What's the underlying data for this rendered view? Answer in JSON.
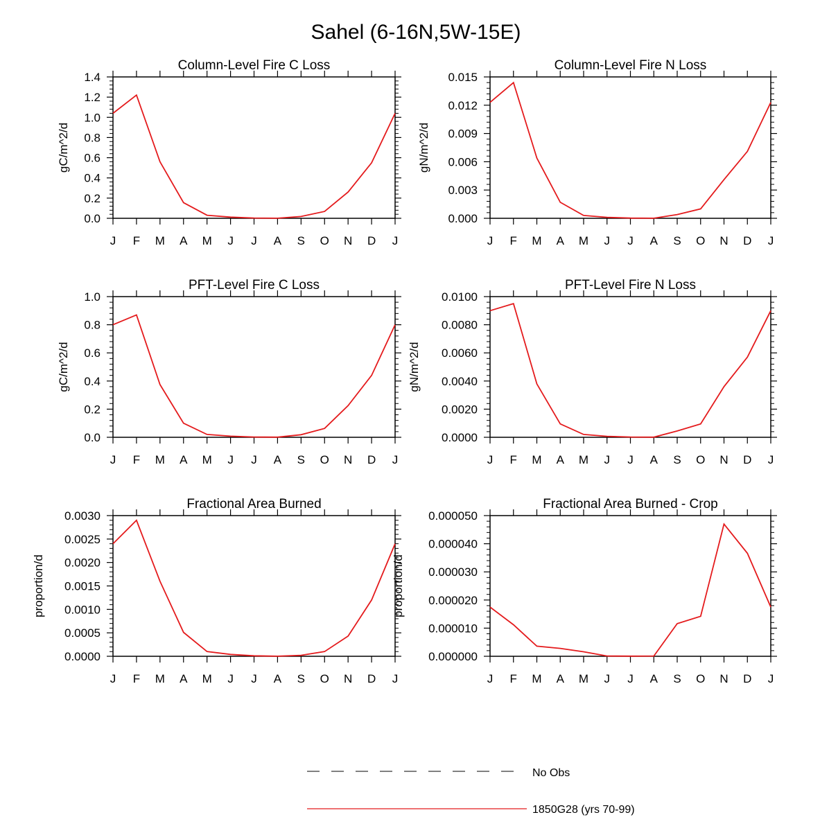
{
  "figure": {
    "title": "Sahel (6-16N,5W-15E)",
    "series_color": "#e41a1c",
    "obs_color": "#000000"
  },
  "chart_data": [
    {
      "type": "line",
      "title": "Column-Level Fire C Loss",
      "ylabel": "gC/m^2/d",
      "categories": [
        "J",
        "F",
        "M",
        "A",
        "M",
        "J",
        "J",
        "A",
        "S",
        "O",
        "N",
        "D",
        "J"
      ],
      "ylim": [
        0,
        1.4
      ],
      "yticks": [
        "0.0",
        "0.2",
        "0.4",
        "0.6",
        "0.8",
        "1.0",
        "1.2",
        "1.4"
      ],
      "series": [
        {
          "name": "1850G28 (yrs 70-99)",
          "values": [
            1.04,
            1.22,
            0.56,
            0.155,
            0.03,
            0.012,
            0.003,
            0.001,
            0.018,
            0.068,
            0.26,
            0.55,
            1.04
          ]
        }
      ]
    },
    {
      "type": "line",
      "title": "Column-Level Fire N Loss",
      "ylabel": "gN/m^2/d",
      "categories": [
        "J",
        "F",
        "M",
        "A",
        "M",
        "J",
        "J",
        "A",
        "S",
        "O",
        "N",
        "D",
        "J"
      ],
      "ylim": [
        0,
        0.015
      ],
      "yticks": [
        "0.000",
        "0.003",
        "0.006",
        "0.009",
        "0.012",
        "0.015"
      ],
      "series": [
        {
          "name": "1850G28 (yrs 70-99)",
          "values": [
            0.0123,
            0.0144,
            0.0064,
            0.0017,
            0.0003,
            0.0001,
            2e-05,
            1e-05,
            0.0004,
            0.001,
            0.0041,
            0.0071,
            0.0123
          ]
        }
      ]
    },
    {
      "type": "line",
      "title": "PFT-Level Fire C Loss",
      "ylabel": "gC/m^2/d",
      "categories": [
        "J",
        "F",
        "M",
        "A",
        "M",
        "J",
        "J",
        "A",
        "S",
        "O",
        "N",
        "D",
        "J"
      ],
      "ylim": [
        0,
        1.0
      ],
      "yticks": [
        "0.0",
        "0.2",
        "0.4",
        "0.6",
        "0.8",
        "1.0"
      ],
      "series": [
        {
          "name": "1850G28 (yrs 70-99)",
          "values": [
            0.8,
            0.87,
            0.375,
            0.1,
            0.02,
            0.008,
            0.002,
            0.001,
            0.018,
            0.063,
            0.225,
            0.44,
            0.8
          ]
        }
      ]
    },
    {
      "type": "line",
      "title": "PFT-Level Fire N Loss",
      "ylabel": "gN/m^2/d",
      "categories": [
        "J",
        "F",
        "M",
        "A",
        "M",
        "J",
        "J",
        "A",
        "S",
        "O",
        "N",
        "D",
        "J"
      ],
      "ylim": [
        0,
        0.01
      ],
      "yticks": [
        "0.0000",
        "0.0020",
        "0.0040",
        "0.0060",
        "0.0080",
        "0.0100"
      ],
      "series": [
        {
          "name": "1850G28 (yrs 70-99)",
          "values": [
            0.009,
            0.0095,
            0.0038,
            0.00095,
            0.0002,
            7e-05,
            2e-05,
            1e-05,
            0.00045,
            0.00095,
            0.0036,
            0.0057,
            0.009
          ]
        }
      ]
    },
    {
      "type": "line",
      "title": "Fractional Area Burned",
      "ylabel": "proportion/d",
      "categories": [
        "J",
        "F",
        "M",
        "A",
        "M",
        "J",
        "J",
        "A",
        "S",
        "O",
        "N",
        "D",
        "J"
      ],
      "ylim": [
        0,
        0.003
      ],
      "yticks": [
        "0.0000",
        "0.0005",
        "0.0010",
        "0.0015",
        "0.0020",
        "0.0025",
        "0.0030"
      ],
      "series": [
        {
          "name": "1850G28 (yrs 70-99)",
          "values": [
            0.0024,
            0.0029,
            0.0016,
            0.00051,
            0.0001,
            4e-05,
            1e-05,
            2e-06,
            2e-05,
            0.0001,
            0.00043,
            0.0012,
            0.0024
          ]
        }
      ]
    },
    {
      "type": "line",
      "title": "Fractional Area Burned - Crop",
      "ylabel": "proportion/d",
      "categories": [
        "J",
        "F",
        "M",
        "A",
        "M",
        "J",
        "J",
        "A",
        "S",
        "O",
        "N",
        "D",
        "J"
      ],
      "ylim": [
        0,
        5e-05
      ],
      "yticks": [
        "0.000000",
        "0.000010",
        "0.000020",
        "0.000030",
        "0.000040",
        "0.000050"
      ],
      "series": [
        {
          "name": "1850G28 (yrs 70-99)",
          "values": [
            1.75e-05,
            1.12e-05,
            3.6e-06,
            2.8e-06,
            1.6e-06,
            1e-07,
            5e-08,
            1e-07,
            1.16e-05,
            1.42e-05,
            4.7e-05,
            3.66e-05,
            1.75e-05
          ]
        }
      ]
    }
  ],
  "legend": {
    "items": [
      {
        "label": "No Obs",
        "style": "dashed"
      },
      {
        "label": "1850G28 (yrs 70-99)",
        "style": "solid"
      }
    ]
  }
}
